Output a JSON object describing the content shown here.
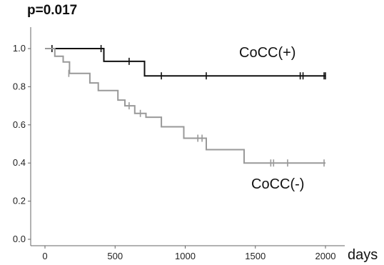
{
  "annotation": "p=0.017",
  "chart_data": {
    "type": "line",
    "subtype": "kaplan-meier",
    "title": "",
    "xlabel": "days",
    "ylabel": "",
    "xlim": [
      -100,
      2100
    ],
    "ylim": [
      -0.05,
      1.08
    ],
    "xticks": [
      0,
      500,
      1000,
      1500,
      2000
    ],
    "yticks": [
      0.0,
      0.2,
      0.4,
      0.6,
      0.8,
      1.0
    ],
    "ytick_labels": [
      "0.0",
      "0.2",
      "0.4",
      "0.6",
      "0.8",
      "1.0"
    ],
    "grid": false,
    "series": [
      {
        "name": "CoCC(+)",
        "color": "#111111",
        "steps": [
          [
            0,
            1.0
          ],
          [
            420,
            1.0
          ],
          [
            420,
            0.933
          ],
          [
            710,
            0.933
          ],
          [
            710,
            0.857
          ],
          [
            2000,
            0.857
          ]
        ],
        "censored": [
          [
            50,
            1.0
          ],
          [
            400,
            1.0
          ],
          [
            600,
            0.933
          ],
          [
            830,
            0.857
          ],
          [
            1150,
            0.857
          ],
          [
            1820,
            0.857
          ],
          [
            1840,
            0.857
          ],
          [
            1990,
            0.857
          ],
          [
            2000,
            0.857
          ]
        ]
      },
      {
        "name": "CoCC(-)",
        "color": "#999999",
        "steps": [
          [
            0,
            1.0
          ],
          [
            70,
            1.0
          ],
          [
            70,
            0.96
          ],
          [
            130,
            0.96
          ],
          [
            130,
            0.93
          ],
          [
            175,
            0.93
          ],
          [
            175,
            0.87
          ],
          [
            320,
            0.87
          ],
          [
            320,
            0.82
          ],
          [
            380,
            0.82
          ],
          [
            380,
            0.78
          ],
          [
            520,
            0.78
          ],
          [
            520,
            0.73
          ],
          [
            570,
            0.73
          ],
          [
            570,
            0.7
          ],
          [
            640,
            0.7
          ],
          [
            640,
            0.66
          ],
          [
            720,
            0.66
          ],
          [
            720,
            0.64
          ],
          [
            830,
            0.64
          ],
          [
            830,
            0.59
          ],
          [
            990,
            0.59
          ],
          [
            990,
            0.53
          ],
          [
            1150,
            0.53
          ],
          [
            1150,
            0.47
          ],
          [
            1420,
            0.47
          ],
          [
            1420,
            0.4
          ],
          [
            2000,
            0.4
          ]
        ],
        "censored": [
          [
            170,
            0.87
          ],
          [
            600,
            0.7
          ],
          [
            680,
            0.66
          ],
          [
            1090,
            0.53
          ],
          [
            1120,
            0.53
          ],
          [
            1610,
            0.4
          ],
          [
            1630,
            0.4
          ],
          [
            1730,
            0.4
          ],
          [
            1990,
            0.4
          ]
        ]
      }
    ]
  }
}
